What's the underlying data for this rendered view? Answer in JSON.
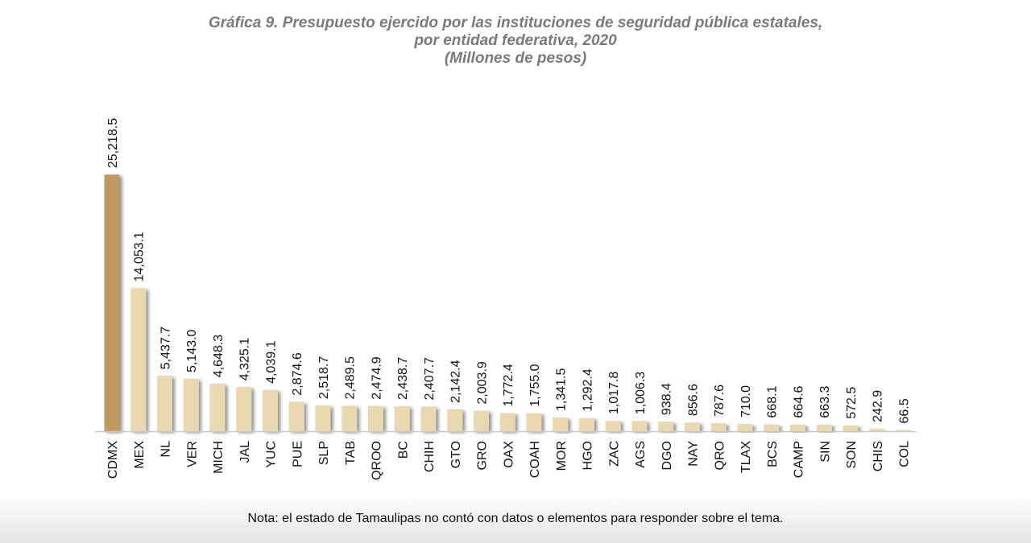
{
  "chart_data": {
    "type": "bar",
    "title": "Gráfica 9. Presupuesto ejercido por las instituciones de seguridad pública estatales,",
    "title_line2": "por entidad federativa, 2020",
    "subtitle": "(Millones de pesos)",
    "xlabel": "",
    "ylabel": "",
    "ylim": [
      0,
      25218.5
    ],
    "grid": false,
    "legend": "none",
    "categories": [
      "CDMX",
      "MEX",
      "NL",
      "VER",
      "MICH",
      "JAL",
      "YUC",
      "PUE",
      "SLP",
      "TAB",
      "QROO",
      "BC",
      "CHIH",
      "GTO",
      "GRO",
      "OAX",
      "COAH",
      "MOR",
      "HGO",
      "ZAC",
      "AGS",
      "DGO",
      "NAY",
      "QRO",
      "TLAX",
      "BCS",
      "CAMP",
      "SIN",
      "SON",
      "CHIS",
      "COL"
    ],
    "values": [
      25218.5,
      14053.1,
      5437.7,
      5143.0,
      4648.3,
      4325.1,
      4039.1,
      2874.6,
      2518.7,
      2489.5,
      2474.9,
      2438.7,
      2407.7,
      2142.4,
      2003.9,
      1772.4,
      1755.0,
      1341.5,
      1292.4,
      1017.8,
      1006.3,
      938.4,
      856.6,
      787.6,
      710.0,
      668.1,
      664.6,
      663.3,
      572.5,
      242.9,
      66.5
    ],
    "data_labels": [
      "25,218.5",
      "14,053.1",
      "5,437.7",
      "5,143.0",
      "4,648.3",
      "4,325.1",
      "4,039.1",
      "2,874.6",
      "2,518.7",
      "2,489.5",
      "2,474.9",
      "2,438.7",
      "2,407.7",
      "2,142.4",
      "2,003.9",
      "1,772.4",
      "1,755.0",
      "1,341.5",
      "1,292.4",
      "1,017.8",
      "1,006.3",
      "938.4",
      "856.6",
      "787.6",
      "710.0",
      "668.1",
      "664.6",
      "663.3",
      "572.5",
      "242.9",
      "66.5"
    ],
    "colors": {
      "highlight": "#c09a5e",
      "bar": "#ead8b1",
      "axis": "#c8c8c8",
      "title": "#7a7a7a"
    },
    "highlight_index": 0,
    "note": "Nota: el estado de Tamaulipas no contó con datos o elementos para responder sobre el tema."
  }
}
